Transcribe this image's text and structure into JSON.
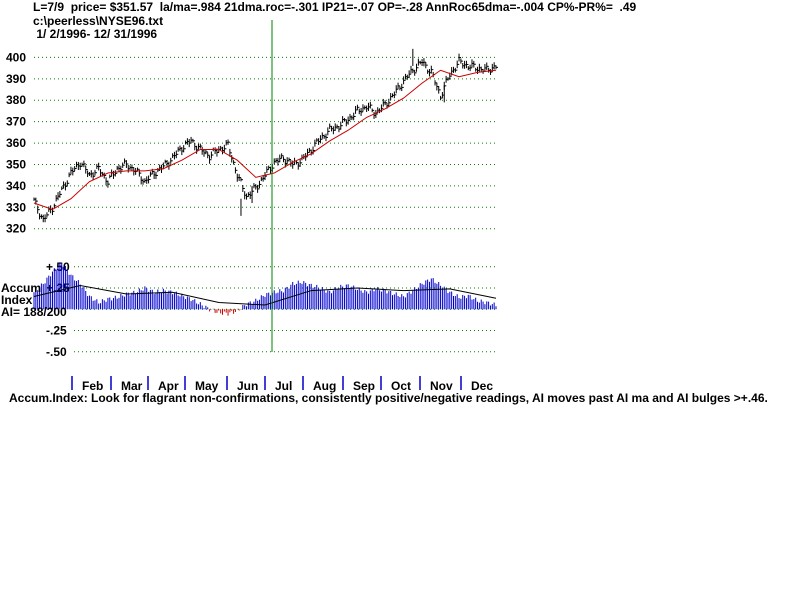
{
  "header": {
    "line1": "L=7/9  price= $351.57  la/ma=.984 21dma.roc=-.301 IP21=-.07 OP=-.28 AnnRoc65dma=-.004 CP%-PR%=  .49",
    "line2": "c:\\peerless\\NYSE96.txt",
    "line3": " 1/ 2/1996- 12/ 31/1996"
  },
  "caption": "Accum.Index: Look for flagrant non-confirmations, consistently positive/negative readings, AI moves past AI ma and AI bulges >+.46.",
  "accum_label": {
    "line1": "Accum",
    "line2": "Index",
    "line3": "AI= 188/200"
  },
  "colors": {
    "price_bar": "#000000",
    "ma_line": "#cc0000",
    "grid": "#008000",
    "marker": "#008000",
    "accum_pos": "#0000cc",
    "accum_neg": "#cc0000",
    "accum_ma": "#000000",
    "month_tick": "#0000cc"
  },
  "chart_data": [
    {
      "type": "line",
      "title": "",
      "yticks": [
        320,
        330,
        340,
        350,
        360,
        370,
        380,
        390,
        400
      ],
      "ylim": [
        318,
        403
      ],
      "grid": true,
      "x_months": [
        "Feb",
        "Mar",
        "Apr",
        "May",
        "Jun",
        "Jul",
        "Aug",
        "Sep",
        "Oct",
        "Nov",
        "Dec"
      ],
      "series": [
        {
          "kind": "price_bars",
          "x": [
            0,
            5,
            10,
            15,
            20,
            25,
            30,
            35,
            40,
            45,
            50,
            55,
            60,
            65,
            70,
            75,
            80,
            85,
            90,
            95,
            100,
            105,
            110,
            115,
            120,
            125,
            130,
            135,
            140,
            145,
            150,
            155,
            160,
            165,
            170,
            175,
            180,
            185,
            190,
            195,
            200,
            205,
            210,
            215,
            220,
            225,
            230,
            235,
            240,
            245,
            250
          ],
          "values": [
            333,
            324,
            330,
            338,
            346,
            351,
            345,
            348,
            342,
            348,
            350,
            347,
            342,
            346,
            349,
            353,
            358,
            361,
            357,
            354,
            357,
            359,
            345,
            335,
            339,
            345,
            351,
            353,
            350,
            352,
            357,
            362,
            366,
            368,
            371,
            375,
            377,
            374,
            378,
            383,
            389,
            394,
            398,
            393,
            382,
            392,
            398,
            396,
            395,
            394,
            396
          ]
        },
        {
          "name": "",
          "kind": "moving_average",
          "x": [
            0,
            10,
            20,
            30,
            40,
            50,
            60,
            70,
            80,
            90,
            100,
            110,
            120,
            130,
            140,
            150,
            160,
            170,
            180,
            190,
            200,
            210,
            220,
            230,
            240,
            250
          ],
          "values": [
            332,
            329,
            334,
            342,
            346,
            347,
            347,
            348,
            352,
            357,
            357,
            352,
            344,
            346,
            351,
            355,
            361,
            366,
            372,
            376,
            381,
            388,
            394,
            391,
            393,
            394
          ]
        }
      ]
    },
    {
      "type": "bar",
      "title": "",
      "yticks": [
        "+.50",
        "+.25",
        ".25",
        "-.25",
        "-.50"
      ],
      "ylim": [
        -0.55,
        0.58
      ],
      "grid": true,
      "series": [
        {
          "kind": "accum_index",
          "x": [
            0,
            5,
            10,
            15,
            20,
            25,
            30,
            35,
            40,
            45,
            50,
            55,
            60,
            65,
            70,
            75,
            80,
            85,
            90,
            95,
            100,
            105,
            110,
            115,
            120,
            125,
            130,
            135,
            140,
            145,
            150,
            155,
            160,
            165,
            170,
            175,
            180,
            185,
            190,
            195,
            200,
            205,
            210,
            215,
            220,
            225,
            230,
            235,
            240,
            245,
            250
          ],
          "values": [
            0.2,
            0.3,
            0.44,
            0.55,
            0.4,
            0.3,
            0.15,
            0.08,
            0.12,
            0.14,
            0.18,
            0.2,
            0.25,
            0.2,
            0.22,
            0.2,
            0.16,
            0.12,
            0.06,
            0.0,
            -0.04,
            -0.05,
            -0.02,
            0.06,
            0.1,
            0.17,
            0.2,
            0.22,
            0.3,
            0.32,
            0.28,
            0.25,
            0.2,
            0.26,
            0.28,
            0.24,
            0.2,
            0.24,
            0.22,
            0.18,
            0.15,
            0.22,
            0.3,
            0.36,
            0.28,
            0.2,
            0.14,
            0.16,
            0.1,
            0.08,
            0.05
          ]
        },
        {
          "name": "",
          "kind": "ai_moving_average",
          "x": [
            0,
            25,
            50,
            75,
            100,
            125,
            150,
            175,
            200,
            225,
            250
          ],
          "values": [
            0.15,
            0.28,
            0.18,
            0.2,
            0.08,
            0.05,
            0.22,
            0.25,
            0.22,
            0.24,
            0.13
          ]
        }
      ]
    }
  ]
}
